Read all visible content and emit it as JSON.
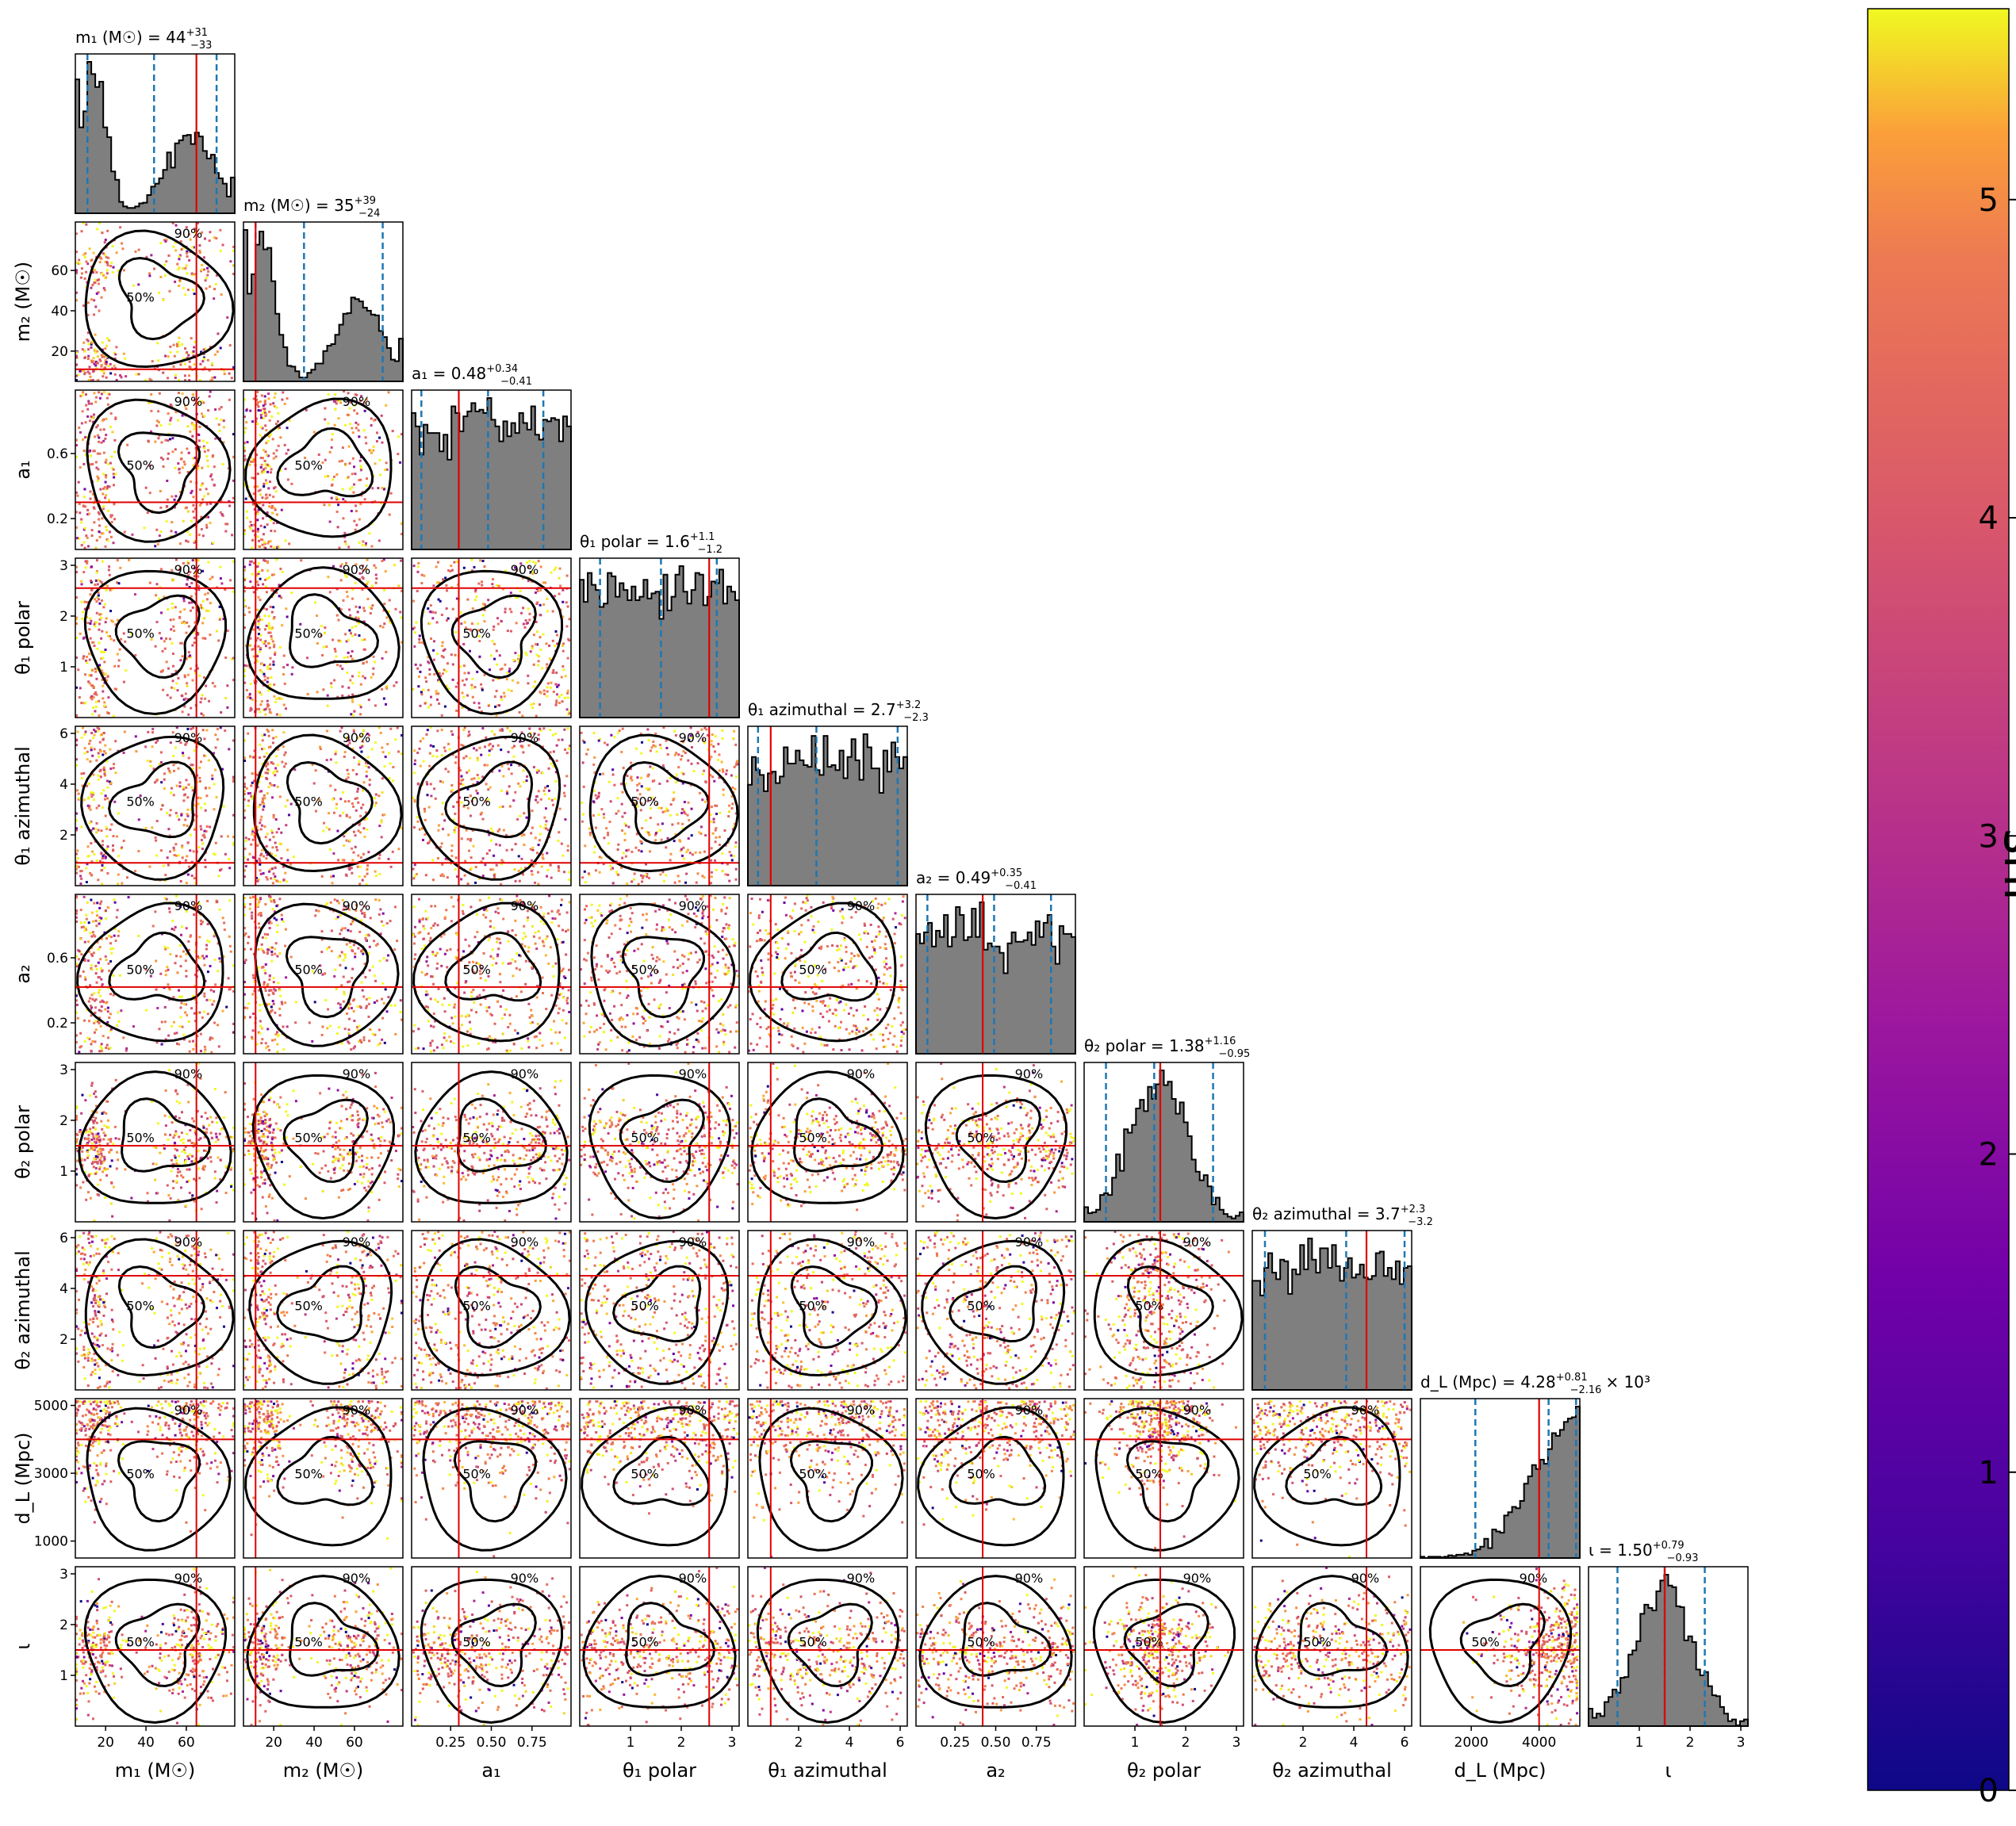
{
  "chart_data": {
    "type": "scatter",
    "subtype": "corner plot (1D histograms on diagonal, 2D scatter with 50%/90% contours below)",
    "colorbar": {
      "label": "snr",
      "ticks": [
        "0",
        "1",
        "2",
        "3",
        "4",
        "5"
      ],
      "range": [
        0,
        5.6
      ],
      "colormap": "plasma"
    },
    "contour_labels": [
      "50%",
      "90%"
    ],
    "parameters": [
      {
        "label": "m₁ (M☉)",
        "title": "m₁ (M☉) = 44 +31 −33",
        "title_main": "m₁ (M☉) = 44",
        "title_sup": "+31",
        "title_sub": "−33",
        "range": [
          5,
          84
        ],
        "truth": 65,
        "median": 44,
        "ci": [
          11,
          75
        ],
        "ticks": [
          "20",
          "40",
          "60"
        ],
        "tick_vals": [
          20,
          40,
          60
        ]
      },
      {
        "label": "m₂ (M☉)",
        "title": "m₂ (M☉) = 35 +39 −24",
        "title_main": "m₂ (M☉) = 35",
        "title_sup": "+39",
        "title_sub": "−24",
        "range": [
          5,
          84
        ],
        "truth": 11,
        "median": 35,
        "ci": [
          11,
          74
        ],
        "ticks": [
          "20",
          "40",
          "60"
        ],
        "tick_vals": [
          20,
          40,
          60
        ]
      },
      {
        "label": "a₁",
        "title": "a₁ = 0.48 +0.34 −0.41",
        "title_main": "a₁ = 0.48",
        "title_sup": "+0.34",
        "title_sub": "−0.41",
        "range": [
          0.01,
          0.99
        ],
        "truth": 0.3,
        "median": 0.48,
        "ci": [
          0.07,
          0.82
        ],
        "ticks": [
          "0.25",
          "0.50",
          "0.75"
        ],
        "tick_vals": [
          0.25,
          0.5,
          0.75
        ],
        "yticks": [
          "0.2",
          "0.6"
        ],
        "ytick_vals": [
          0.2,
          0.6
        ]
      },
      {
        "label": "θ₁ polar",
        "title": "θ₁ polar = 1.6 +1.1 −1.2",
        "title_main": "θ₁ polar = 1.6",
        "title_sup": "+1.1",
        "title_sub": "−1.2",
        "range": [
          0,
          3.14
        ],
        "truth": 2.55,
        "median": 1.6,
        "ci": [
          0.4,
          2.7
        ],
        "ticks": [
          "1",
          "2",
          "3"
        ],
        "tick_vals": [
          1,
          2,
          3
        ]
      },
      {
        "label": "θ₁ azimuthal",
        "title": "θ₁ azimuthal = 2.7 +3.2 −2.3",
        "title_main": "θ₁ azimuthal = 2.7",
        "title_sup": "+3.2",
        "title_sub": "−2.3",
        "range": [
          0,
          6.28
        ],
        "truth": 0.9,
        "median": 2.7,
        "ci": [
          0.4,
          5.9
        ],
        "ticks": [
          "2",
          "4",
          "6"
        ],
        "tick_vals": [
          2,
          4,
          6
        ]
      },
      {
        "label": "a₂",
        "title": "a₂ = 0.49 +0.35 −0.41",
        "title_main": "a₂ = 0.49",
        "title_sup": "+0.35",
        "title_sub": "−0.41",
        "range": [
          0.01,
          0.99
        ],
        "truth": 0.42,
        "median": 0.49,
        "ci": [
          0.08,
          0.84
        ],
        "ticks": [
          "0.25",
          "0.50",
          "0.75"
        ],
        "tick_vals": [
          0.25,
          0.5,
          0.75
        ],
        "yticks": [
          "0.2",
          "0.6"
        ],
        "ytick_vals": [
          0.2,
          0.6
        ]
      },
      {
        "label": "θ₂ polar",
        "title": "θ₂ polar = 1.38 +1.16 −0.95",
        "title_main": "θ₂ polar = 1.38",
        "title_sup": "+1.16",
        "title_sub": "−0.95",
        "range": [
          0,
          3.14
        ],
        "truth": 1.5,
        "median": 1.38,
        "ci": [
          0.43,
          2.54
        ],
        "ticks": [
          "1",
          "2",
          "3"
        ],
        "tick_vals": [
          1,
          2,
          3
        ]
      },
      {
        "label": "θ₂ azimuthal",
        "title": "θ₂ azimuthal = 3.7 +2.3 −3.2",
        "title_main": "θ₂ azimuthal = 3.7",
        "title_sup": "+2.3",
        "title_sub": "−3.2",
        "range": [
          0,
          6.28
        ],
        "truth": 4.5,
        "median": 3.7,
        "ci": [
          0.5,
          6.0
        ],
        "ticks": [
          "2",
          "4",
          "6"
        ],
        "tick_vals": [
          2,
          4,
          6
        ]
      },
      {
        "label": "d_L (Mpc)",
        "title": "d_L (Mpc) = 4.28 +0.81 −2.16 × 10³",
        "title_main": "d_L (Mpc) = 4.28",
        "title_sup": "+0.81",
        "title_sub": "−2.16",
        "title_suffix": "× 10³",
        "range": [
          500,
          5200
        ],
        "truth": 4000,
        "median": 4280,
        "ci": [
          2120,
          5090
        ],
        "ticks": [
          "2000",
          "4000"
        ],
        "tick_vals": [
          2000,
          4000
        ],
        "yticks": [
          "1000",
          "3000",
          "5000"
        ],
        "ytick_vals": [
          1000,
          3000,
          5000
        ]
      },
      {
        "label": "ι",
        "title": "ι = 1.50 +0.79 −0.93",
        "title_main": "ι = 1.50",
        "title_sup": "+0.79",
        "title_sub": "−0.93",
        "range": [
          0,
          3.14
        ],
        "truth": 1.5,
        "median": 1.5,
        "ci": [
          0.57,
          2.29
        ],
        "ticks": [
          "1",
          "2",
          "3"
        ],
        "tick_vals": [
          1,
          2,
          3
        ]
      }
    ]
  }
}
